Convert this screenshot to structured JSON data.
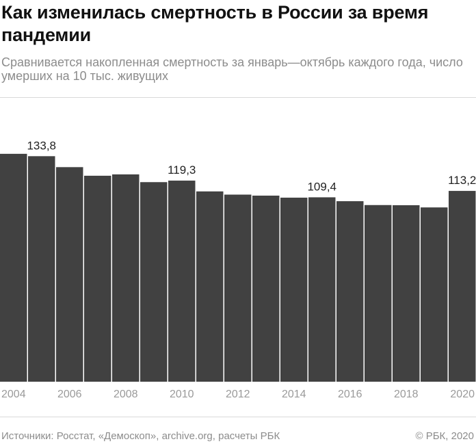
{
  "header": {
    "title": "Как изменилась смертность в России за время пандемии",
    "subtitle": "Сравнивается накопленная смертность за январь—октябрь каждого года, число умерших на 10 тыс. живущих"
  },
  "footer": {
    "sources": "Источники: Росстат, «Демоскоп», archive.org, расчеты РБК",
    "copyright": "© РБК, 2020"
  },
  "colors": {
    "bar": "#414141",
    "text": "#222222",
    "muted": "#8c8c8c"
  },
  "chart_data": {
    "type": "bar",
    "title": "Как изменилась смертность в России за время пандемии",
    "subtitle": "Сравнивается накопленная смертность за январь—октябрь каждого года, число умерших на 10 тыс. живущих",
    "categories": [
      2004,
      2005,
      2006,
      2007,
      2008,
      2009,
      2010,
      2011,
      2012,
      2013,
      2014,
      2015,
      2016,
      2017,
      2018,
      2019,
      2020
    ],
    "values": [
      135.2,
      133.8,
      127.3,
      122.2,
      123.0,
      118.4,
      119.3,
      112.9,
      111.0,
      110.4,
      109.2,
      109.4,
      107.1,
      104.8,
      104.7,
      103.4,
      113.2
    ],
    "data_labels": [
      {
        "year": 2005,
        "text": "133,8"
      },
      {
        "year": 2010,
        "text": "119,3"
      },
      {
        "year": 2015,
        "text": "109,4"
      },
      {
        "year": 2020,
        "text": "113,2"
      }
    ],
    "x_tick_labels": [
      "2004",
      "2006",
      "2008",
      "2010",
      "2012",
      "2014",
      "2016",
      "2018",
      "2020"
    ],
    "ylim": [
      0,
      140
    ],
    "xlabel": "",
    "ylabel": "",
    "grid": false,
    "legend": "none"
  }
}
